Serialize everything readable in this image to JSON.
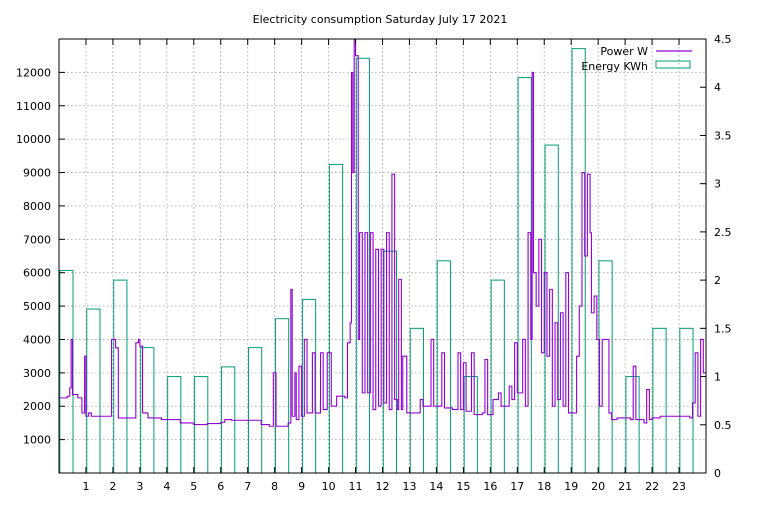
{
  "chart_data": {
    "type": "step-line + bar",
    "title": "Electricity consumption Saturday July 17 2021",
    "xlabel": "",
    "ylabel": "",
    "xlim": [
      0,
      24
    ],
    "x_ticks": [
      1,
      2,
      3,
      4,
      5,
      6,
      7,
      8,
      9,
      10,
      11,
      12,
      13,
      14,
      15,
      16,
      17,
      18,
      19,
      20,
      21,
      22,
      23
    ],
    "y1_range": [
      0,
      13000
    ],
    "y1_ticks": [
      1000,
      2000,
      3000,
      4000,
      5000,
      6000,
      7000,
      8000,
      9000,
      10000,
      11000,
      12000
    ],
    "y2_range": [
      0,
      4.5
    ],
    "y2_ticks": [
      "0",
      "0.5",
      "1",
      "1.5",
      "2",
      "2.5",
      "3",
      "3.5",
      "4",
      "4.5"
    ],
    "grid": true,
    "legend_position": "top-right",
    "series": [
      {
        "name": "Power W",
        "axis": "left",
        "color": "#9400d3",
        "style": "steps",
        "points": [
          [
            0.0,
            2250
          ],
          [
            0.25,
            2250
          ],
          [
            0.3,
            2300
          ],
          [
            0.4,
            2550
          ],
          [
            0.45,
            4000
          ],
          [
            0.5,
            2350
          ],
          [
            0.7,
            2250
          ],
          [
            0.85,
            1800
          ],
          [
            0.95,
            3500
          ],
          [
            1.0,
            1700
          ],
          [
            1.1,
            1800
          ],
          [
            1.2,
            1700
          ],
          [
            1.5,
            1700
          ],
          [
            1.9,
            1700
          ],
          [
            1.95,
            4000
          ],
          [
            2.1,
            3750
          ],
          [
            2.2,
            1650
          ],
          [
            2.5,
            1650
          ],
          [
            2.75,
            1650
          ],
          [
            2.85,
            3900
          ],
          [
            2.95,
            4000
          ],
          [
            3.0,
            3800
          ],
          [
            3.1,
            1800
          ],
          [
            3.3,
            1650
          ],
          [
            3.8,
            1600
          ],
          [
            4.0,
            1600
          ],
          [
            4.5,
            1550
          ],
          [
            4.5,
            1500
          ],
          [
            5.0,
            1450
          ],
          [
            5.5,
            1480
          ],
          [
            6.0,
            1520
          ],
          [
            6.15,
            1600
          ],
          [
            6.4,
            1580
          ],
          [
            7.0,
            1580
          ],
          [
            7.5,
            1450
          ],
          [
            7.8,
            1400
          ],
          [
            7.95,
            3000
          ],
          [
            8.05,
            1400
          ],
          [
            8.5,
            1500
          ],
          [
            8.6,
            5500
          ],
          [
            8.65,
            1700
          ],
          [
            8.75,
            3000
          ],
          [
            8.8,
            1600
          ],
          [
            8.9,
            3200
          ],
          [
            9.0,
            1700
          ],
          [
            9.1,
            4000
          ],
          [
            9.2,
            1800
          ],
          [
            9.4,
            3600
          ],
          [
            9.5,
            1800
          ],
          [
            9.7,
            3600
          ],
          [
            9.8,
            1900
          ],
          [
            9.95,
            3600
          ],
          [
            10.1,
            2000
          ],
          [
            10.3,
            2300
          ],
          [
            10.6,
            2250
          ],
          [
            10.7,
            3900
          ],
          [
            10.8,
            4500
          ],
          [
            10.85,
            12000
          ],
          [
            10.9,
            9000
          ],
          [
            10.95,
            13000
          ],
          [
            11.0,
            12500
          ],
          [
            11.1,
            4000
          ],
          [
            11.15,
            7200
          ],
          [
            11.25,
            2400
          ],
          [
            11.35,
            7200
          ],
          [
            11.45,
            2400
          ],
          [
            11.55,
            7200
          ],
          [
            11.65,
            1900
          ],
          [
            11.75,
            6700
          ],
          [
            11.85,
            2000
          ],
          [
            11.95,
            6700
          ],
          [
            12.05,
            2100
          ],
          [
            12.15,
            7200
          ],
          [
            12.25,
            1900
          ],
          [
            12.35,
            8950
          ],
          [
            12.45,
            2200
          ],
          [
            12.55,
            1900
          ],
          [
            12.6,
            5800
          ],
          [
            12.7,
            1900
          ],
          [
            12.75,
            3500
          ],
          [
            12.9,
            1800
          ],
          [
            13.3,
            1800
          ],
          [
            13.4,
            2200
          ],
          [
            13.5,
            2000
          ],
          [
            13.8,
            4000
          ],
          [
            13.9,
            2000
          ],
          [
            14.2,
            3600
          ],
          [
            14.3,
            1950
          ],
          [
            14.6,
            1900
          ],
          [
            14.8,
            3600
          ],
          [
            14.9,
            1900
          ],
          [
            15.0,
            3300
          ],
          [
            15.1,
            1850
          ],
          [
            15.3,
            3600
          ],
          [
            15.4,
            1750
          ],
          [
            15.7,
            1800
          ],
          [
            15.8,
            3400
          ],
          [
            15.9,
            1750
          ],
          [
            16.1,
            2200
          ],
          [
            16.3,
            2400
          ],
          [
            16.4,
            2000
          ],
          [
            16.7,
            2600
          ],
          [
            16.8,
            2200
          ],
          [
            16.9,
            3900
          ],
          [
            17.0,
            2400
          ],
          [
            17.2,
            4000
          ],
          [
            17.3,
            2000
          ],
          [
            17.4,
            7200
          ],
          [
            17.5,
            4000
          ],
          [
            17.55,
            12000
          ],
          [
            17.6,
            6000
          ],
          [
            17.7,
            5000
          ],
          [
            17.8,
            7000
          ],
          [
            17.9,
            3600
          ],
          [
            18.0,
            6000
          ],
          [
            18.1,
            3500
          ],
          [
            18.2,
            5500
          ],
          [
            18.3,
            2000
          ],
          [
            18.4,
            4500
          ],
          [
            18.5,
            2200
          ],
          [
            18.6,
            4800
          ],
          [
            18.7,
            2000
          ],
          [
            18.8,
            6000
          ],
          [
            18.9,
            1800
          ],
          [
            19.0,
            1800
          ],
          [
            19.2,
            3500
          ],
          [
            19.3,
            5000
          ],
          [
            19.4,
            9000
          ],
          [
            19.5,
            6500
          ],
          [
            19.6,
            8950
          ],
          [
            19.7,
            7200
          ],
          [
            19.75,
            4800
          ],
          [
            19.85,
            5300
          ],
          [
            19.95,
            4000
          ],
          [
            20.05,
            2000
          ],
          [
            20.15,
            4000
          ],
          [
            20.3,
            4000
          ],
          [
            20.4,
            1800
          ],
          [
            20.5,
            1600
          ],
          [
            20.7,
            1650
          ],
          [
            21.0,
            1650
          ],
          [
            21.2,
            1600
          ],
          [
            21.3,
            3200
          ],
          [
            21.4,
            1600
          ],
          [
            21.7,
            1500
          ],
          [
            21.8,
            2500
          ],
          [
            21.9,
            1600
          ],
          [
            22.0,
            1650
          ],
          [
            22.3,
            1700
          ],
          [
            22.7,
            1700
          ],
          [
            23.0,
            1700
          ],
          [
            23.4,
            1650
          ],
          [
            23.5,
            2100
          ],
          [
            23.6,
            3600
          ],
          [
            23.7,
            1700
          ],
          [
            23.8,
            4000
          ],
          [
            23.9,
            3000
          ],
          [
            24.0,
            2950
          ]
        ]
      },
      {
        "name": "Energy KWh",
        "axis": "right",
        "color": "#009e73",
        "style": "boxes",
        "hours": [
          0,
          1,
          2,
          3,
          4,
          5,
          6,
          7,
          8,
          9,
          10,
          11,
          12,
          13,
          14,
          15,
          16,
          17,
          18,
          19,
          20,
          21,
          22,
          23
        ],
        "values": [
          2.1,
          1.7,
          2.0,
          1.3,
          1.0,
          1.0,
          1.1,
          1.3,
          1.6,
          1.8,
          3.2,
          4.3,
          2.3,
          1.5,
          2.2,
          1.0,
          2.0,
          4.1,
          3.4,
          4.4,
          2.2,
          1.0,
          1.5,
          1.5
        ]
      }
    ]
  }
}
